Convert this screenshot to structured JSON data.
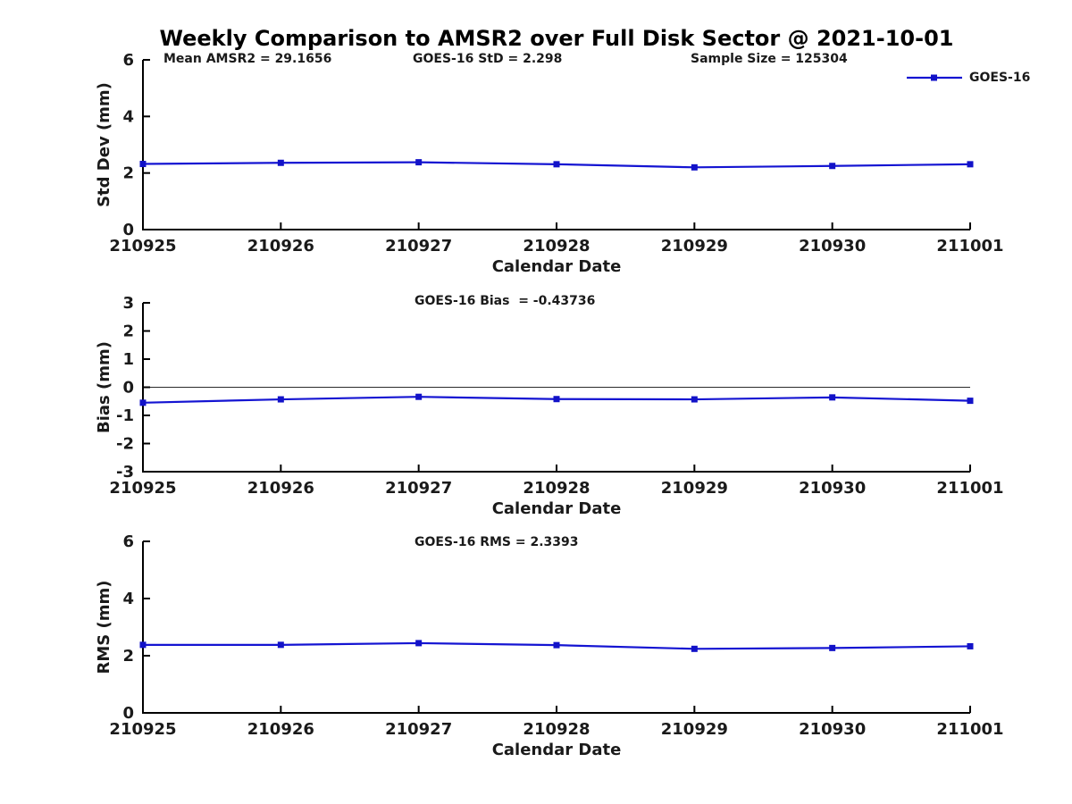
{
  "title": "Weekly Comparison to AMSR2 over Full Disk Sector @ 2021-10-01",
  "legend": {
    "label": "GOES-16"
  },
  "colors": {
    "line": "#1414d2",
    "marker": "#1212c8",
    "axis": "#000000",
    "text": "#1a1a1a",
    "zero_line": "#2b2b2b",
    "background": "#ffffff"
  },
  "stats": {
    "mean_amsr2": "Mean AMSR2 = 29.1656",
    "goes16_std": "GOES-16 StD = 2.298",
    "sample_size": "Sample Size = 125304",
    "goes16_bias": "GOES-16 Bias  = -0.43736",
    "goes16_rms": "GOES-16 RMS = 2.3393"
  },
  "chart_data": [
    {
      "type": "line",
      "name": "std-dev-subplot",
      "title": "",
      "xlabel": "Calendar Date",
      "ylabel": "Std Dev (mm)",
      "ylim": [
        0,
        6
      ],
      "yticks": [
        0,
        2,
        4,
        6
      ],
      "grid": false,
      "zero_line": false,
      "legend_position": "top-right-outside",
      "categories": [
        "210925",
        "210926",
        "210927",
        "210928",
        "210929",
        "210930",
        "211001"
      ],
      "series": [
        {
          "name": "GOES-16",
          "values": [
            2.32,
            2.36,
            2.38,
            2.31,
            2.2,
            2.25,
            2.31
          ]
        }
      ],
      "annotations": [
        "Mean AMSR2 = 29.1656",
        "GOES-16 StD = 2.298",
        "Sample Size = 125304"
      ]
    },
    {
      "type": "line",
      "name": "bias-subplot",
      "title": "GOES-16 Bias  = -0.43736",
      "xlabel": "Calendar Date",
      "ylabel": "Bias (mm)",
      "ylim": [
        -3,
        3
      ],
      "yticks": [
        -3,
        -2,
        -1,
        0,
        1,
        2,
        3
      ],
      "grid": false,
      "zero_line": true,
      "categories": [
        "210925",
        "210926",
        "210927",
        "210928",
        "210929",
        "210930",
        "211001"
      ],
      "series": [
        {
          "name": "GOES-16",
          "values": [
            -0.55,
            -0.43,
            -0.34,
            -0.42,
            -0.43,
            -0.36,
            -0.48
          ]
        }
      ],
      "annotations": [
        "GOES-16 Bias  = -0.43736"
      ]
    },
    {
      "type": "line",
      "name": "rms-subplot",
      "title": "GOES-16 RMS = 2.3393",
      "xlabel": "Calendar Date",
      "ylabel": "RMS (mm)",
      "ylim": [
        0,
        6
      ],
      "yticks": [
        0,
        2,
        4,
        6
      ],
      "grid": false,
      "zero_line": false,
      "categories": [
        "210925",
        "210926",
        "210927",
        "210928",
        "210929",
        "210930",
        "211001"
      ],
      "series": [
        {
          "name": "GOES-16",
          "values": [
            2.38,
            2.38,
            2.44,
            2.37,
            2.24,
            2.27,
            2.33
          ]
        }
      ],
      "annotations": [
        "GOES-16 RMS = 2.3393"
      ]
    }
  ]
}
